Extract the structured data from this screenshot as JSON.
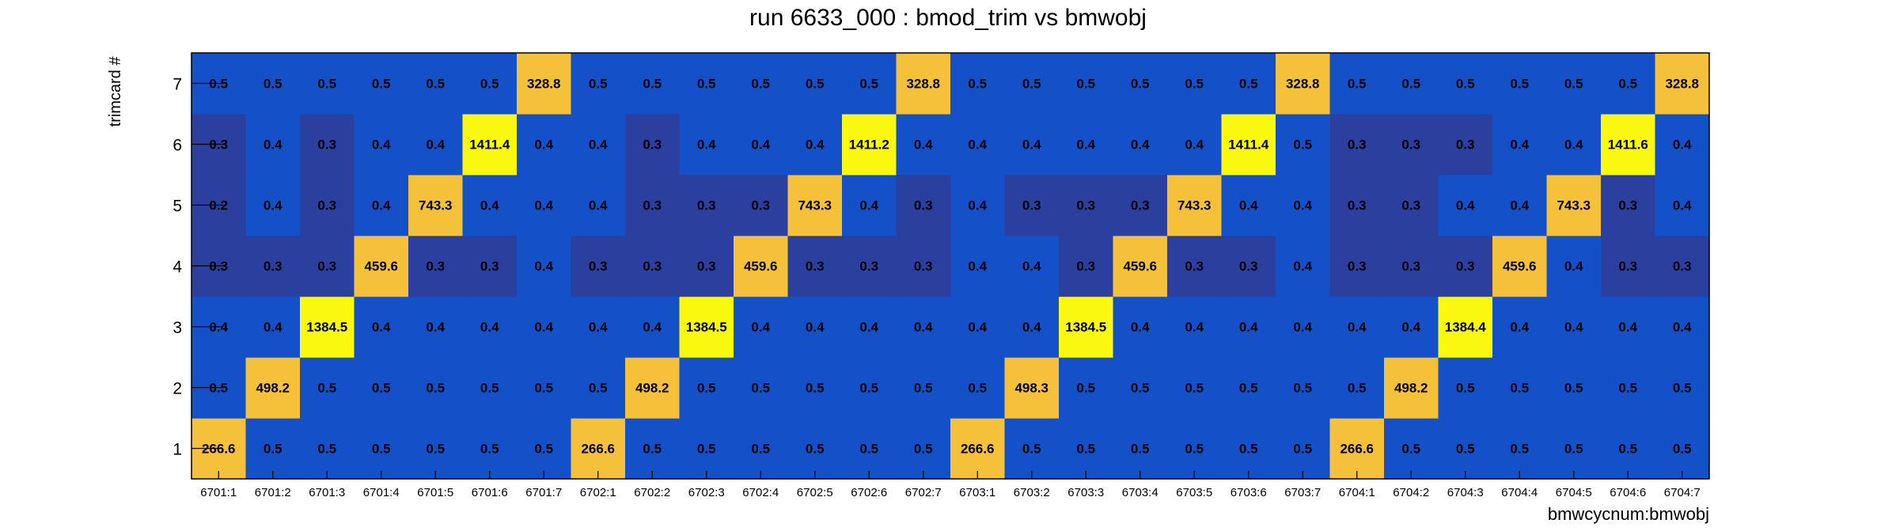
{
  "chart_data": {
    "type": "heatmap",
    "title": "run 6633_000 : bmod_trim vs bmwobj",
    "xlabel": "bmwcycnum:bmwobj",
    "ylabel": "trimcard #",
    "x_categories": [
      "6701:1",
      "6701:2",
      "6701:3",
      "6701:4",
      "6701:5",
      "6701:6",
      "6701:7",
      "6702:1",
      "6702:2",
      "6702:3",
      "6702:4",
      "6702:5",
      "6702:6",
      "6702:7",
      "6703:1",
      "6703:2",
      "6703:3",
      "6703:4",
      "6703:5",
      "6703:6",
      "6703:7",
      "6704:1",
      "6704:2",
      "6704:3",
      "6704:4",
      "6704:5",
      "6704:6",
      "6704:7"
    ],
    "y_categories": [
      "1",
      "2",
      "3",
      "4",
      "5",
      "6",
      "7"
    ],
    "values": [
      [
        "266.6",
        "0.5",
        "0.5",
        "0.5",
        "0.5",
        "0.5",
        "0.5",
        "266.6",
        "0.5",
        "0.5",
        "0.5",
        "0.5",
        "0.5",
        "0.5",
        "266.6",
        "0.5",
        "0.5",
        "0.5",
        "0.5",
        "0.5",
        "0.5",
        "266.6",
        "0.5",
        "0.5",
        "0.5",
        "0.5",
        "0.5",
        "0.5"
      ],
      [
        "0.5",
        "498.2",
        "0.5",
        "0.5",
        "0.5",
        "0.5",
        "0.5",
        "0.5",
        "498.2",
        "0.5",
        "0.5",
        "0.5",
        "0.5",
        "0.5",
        "0.5",
        "498.3",
        "0.5",
        "0.5",
        "0.5",
        "0.5",
        "0.5",
        "0.5",
        "498.2",
        "0.5",
        "0.5",
        "0.5",
        "0.5",
        "0.5"
      ],
      [
        "0.4",
        "0.4",
        "1384.5",
        "0.4",
        "0.4",
        "0.4",
        "0.4",
        "0.4",
        "0.4",
        "1384.5",
        "0.4",
        "0.4",
        "0.4",
        "0.4",
        "0.4",
        "0.4",
        "1384.5",
        "0.4",
        "0.4",
        "0.4",
        "0.4",
        "0.4",
        "0.4",
        "1384.4",
        "0.4",
        "0.4",
        "0.4",
        "0.4"
      ],
      [
        "0.3",
        "0.3",
        "0.3",
        "459.6",
        "0.3",
        "0.3",
        "0.4",
        "0.3",
        "0.3",
        "0.3",
        "459.6",
        "0.3",
        "0.3",
        "0.3",
        "0.4",
        "0.4",
        "0.3",
        "459.6",
        "0.3",
        "0.3",
        "0.4",
        "0.3",
        "0.3",
        "0.3",
        "459.6",
        "0.4",
        "0.3",
        "0.3"
      ],
      [
        "0.2",
        "0.4",
        "0.3",
        "0.4",
        "743.3",
        "0.4",
        "0.4",
        "0.4",
        "0.3",
        "0.3",
        "0.3",
        "743.3",
        "0.4",
        "0.3",
        "0.4",
        "0.3",
        "0.3",
        "0.3",
        "743.3",
        "0.4",
        "0.4",
        "0.3",
        "0.3",
        "0.4",
        "0.4",
        "743.3",
        "0.3",
        "0.4"
      ],
      [
        "0.3",
        "0.4",
        "0.3",
        "0.4",
        "0.4",
        "1411.4",
        "0.4",
        "0.4",
        "0.3",
        "0.4",
        "0.4",
        "0.4",
        "1411.2",
        "0.4",
        "0.4",
        "0.4",
        "0.4",
        "0.4",
        "0.4",
        "1411.4",
        "0.5",
        "0.3",
        "0.3",
        "0.3",
        "0.4",
        "0.4",
        "1411.6",
        "0.4"
      ],
      [
        "0.5",
        "0.5",
        "0.5",
        "0.5",
        "0.5",
        "0.5",
        "328.8",
        "0.5",
        "0.5",
        "0.5",
        "0.5",
        "0.5",
        "0.5",
        "328.8",
        "0.5",
        "0.5",
        "0.5",
        "0.5",
        "0.5",
        "0.5",
        "328.8",
        "0.5",
        "0.5",
        "0.5",
        "0.5",
        "0.5",
        "0.5",
        "328.8"
      ]
    ],
    "colors": {
      "low": "#2a3f9e",
      "mid": "#1450c8",
      "amber": "#f5c13a",
      "yellow": "#f9f80e",
      "axis": "#000000"
    },
    "grid": false,
    "legend": "none"
  }
}
